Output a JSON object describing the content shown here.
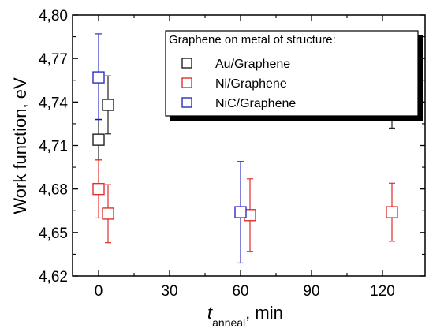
{
  "chart_data": {
    "type": "scatter",
    "title": "",
    "xlabel": {
      "symbol": "t",
      "subscript": "anneal",
      "suffix": ", min"
    },
    "ylabel": "Work function, eV",
    "xlim": [
      -11,
      138
    ],
    "ylim": [
      4.62,
      4.8
    ],
    "x_ticks": [
      0,
      30,
      60,
      90,
      120
    ],
    "x_tick_labels": [
      "0",
      "30",
      "60",
      "90",
      "120"
    ],
    "y_ticks": [
      4.62,
      4.65,
      4.68,
      4.71,
      4.74,
      4.77,
      4.8
    ],
    "y_tick_labels": [
      "4,62",
      "4,65",
      "4,68",
      "4,71",
      "4,74",
      "4,77",
      "4,80"
    ],
    "grid": false,
    "legend": {
      "title": "Graphene on metal of structure:",
      "placement": "top-right"
    },
    "series": [
      {
        "name": "Au/Graphene",
        "color": "#222222",
        "points": [
          {
            "x": 0,
            "y": 4.714,
            "err_low": 4.7,
            "err_high": 4.728
          },
          {
            "x": 4,
            "y": 4.738,
            "err_low": 4.718,
            "err_high": 4.758
          },
          {
            "x": 124,
            "y": 4.737,
            "err_low": 4.722,
            "err_high": 4.752
          }
        ]
      },
      {
        "name": "Ni/Graphene",
        "color": "#e0302a",
        "points": [
          {
            "x": 0,
            "y": 4.68,
            "err_low": 4.66,
            "err_high": 4.7
          },
          {
            "x": 4,
            "y": 4.663,
            "err_low": 4.643,
            "err_high": 4.683
          },
          {
            "x": 64,
            "y": 4.662,
            "err_low": 4.637,
            "err_high": 4.687
          },
          {
            "x": 124,
            "y": 4.664,
            "err_low": 4.644,
            "err_high": 4.684
          }
        ]
      },
      {
        "name": "NiC/Graphene",
        "color": "#2d2fbf",
        "points": [
          {
            "x": 0,
            "y": 4.757,
            "err_low": 4.727,
            "err_high": 4.787
          },
          {
            "x": 60,
            "y": 4.664,
            "err_low": 4.629,
            "err_high": 4.699
          }
        ]
      }
    ]
  }
}
